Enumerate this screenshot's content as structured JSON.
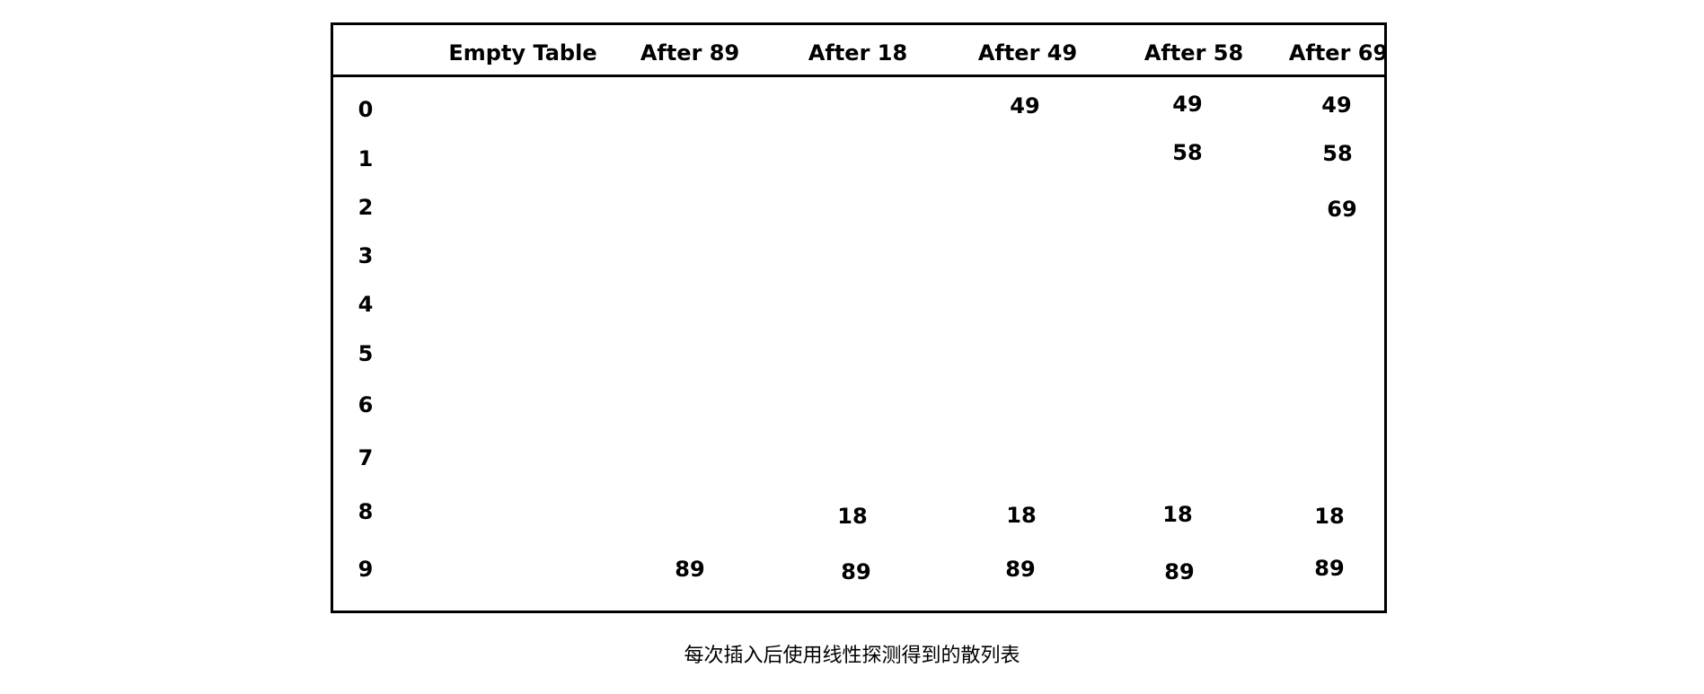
{
  "table": {
    "headers": [
      "",
      "Empty Table",
      "After 89",
      "After 18",
      "After 49",
      "After 58",
      "After 69"
    ],
    "rows": [
      {
        "index": "0",
        "cells": [
          "",
          "",
          "",
          "49",
          "49",
          "49"
        ]
      },
      {
        "index": "1",
        "cells": [
          "",
          "",
          "",
          "",
          "58",
          "58"
        ]
      },
      {
        "index": "2",
        "cells": [
          "",
          "",
          "",
          "",
          "",
          "69"
        ]
      },
      {
        "index": "3",
        "cells": [
          "",
          "",
          "",
          "",
          "",
          ""
        ]
      },
      {
        "index": "4",
        "cells": [
          "",
          "",
          "",
          "",
          "",
          ""
        ]
      },
      {
        "index": "5",
        "cells": [
          "",
          "",
          "",
          "",
          "",
          ""
        ]
      },
      {
        "index": "6",
        "cells": [
          "",
          "",
          "",
          "",
          "",
          ""
        ]
      },
      {
        "index": "7",
        "cells": [
          "",
          "",
          "",
          "",
          "",
          ""
        ]
      },
      {
        "index": "8",
        "cells": [
          "",
          "",
          "18",
          "18",
          "18",
          "18"
        ]
      },
      {
        "index": "9",
        "cells": [
          "",
          "89",
          "89",
          "89",
          "89",
          "89"
        ]
      }
    ]
  },
  "caption": "每次插入后使用线性探测得到的散列表"
}
